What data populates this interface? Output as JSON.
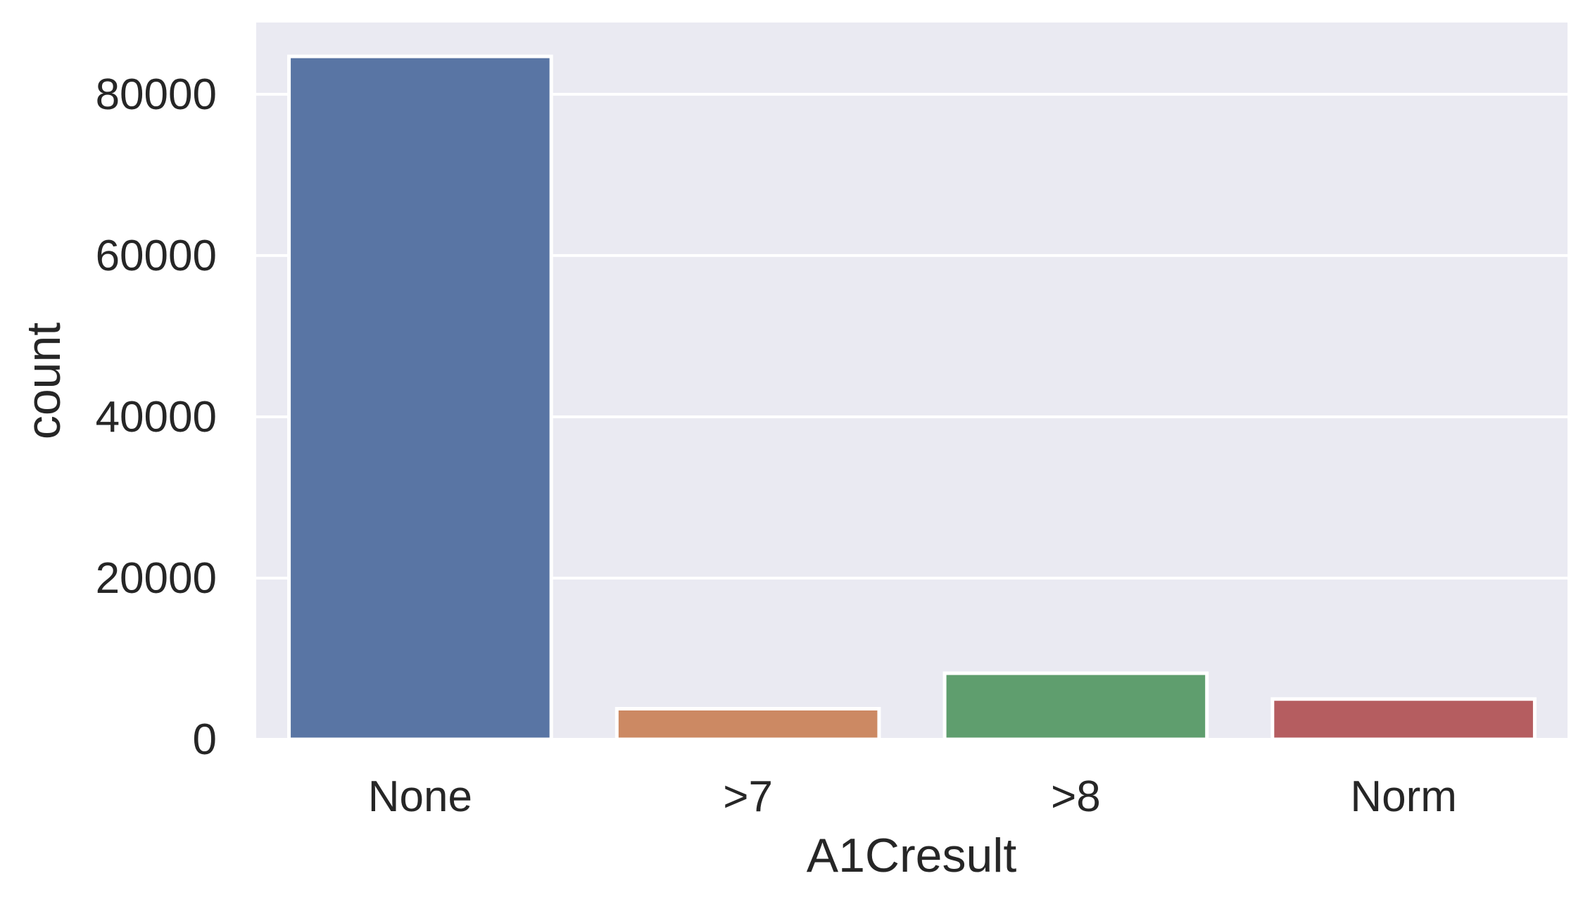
{
  "chart_data": {
    "type": "bar",
    "categories": [
      "None",
      ">7",
      ">8",
      "Norm"
    ],
    "values": [
      84700,
      3800,
      8200,
      5000
    ],
    "xlabel": "A1Cresult",
    "ylabel": "count",
    "ylim": [
      0,
      88900
    ],
    "yticks": [
      0,
      20000,
      40000,
      60000,
      80000
    ],
    "ytick_labels": [
      "0",
      "20000",
      "40000",
      "60000",
      "80000"
    ],
    "grid": true,
    "colors": [
      "#5975a4",
      "#cc8963",
      "#5f9e6e",
      "#b55d60"
    ],
    "background": "#eaeaf2",
    "gridline_color": "#ffffff"
  }
}
